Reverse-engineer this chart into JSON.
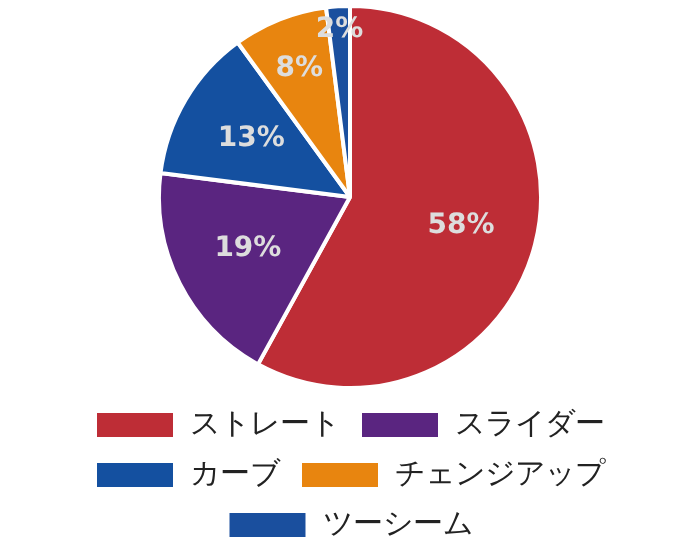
{
  "chart_data": {
    "type": "pie",
    "categories": [
      "ストレート",
      "スライダー",
      "カーブ",
      "チェンジアップ",
      "ツーシーム"
    ],
    "values": [
      58,
      19,
      13,
      8,
      2
    ],
    "colors": [
      "#be2d36",
      "#5a2580",
      "#1450a0",
      "#e8850f",
      "#1a4f9e"
    ],
    "value_labels": [
      "58%",
      "19%",
      "13%",
      "8%",
      "2%"
    ],
    "legend": "bottom"
  }
}
